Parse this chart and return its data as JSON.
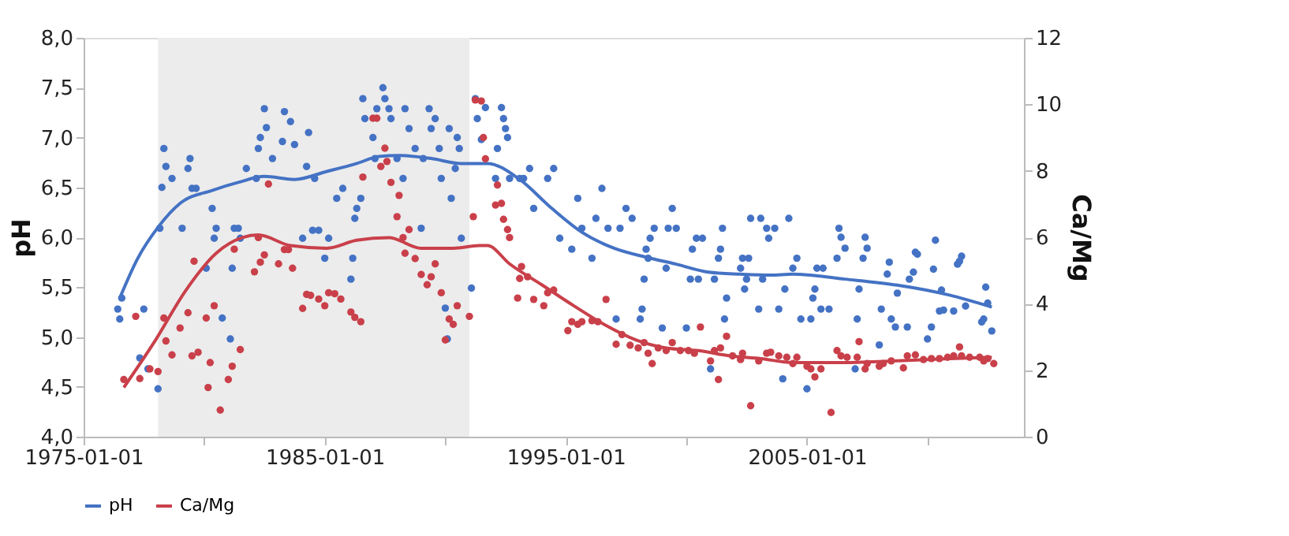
{
  "chart_data": {
    "type": "scatter",
    "ylabel": "pH",
    "y2label": "Ca/Mg",
    "legend": "bottom",
    "grid": false,
    "xlim": [
      "1975-01-01",
      "2014-01-01"
    ],
    "xticks": [
      "1975-01-01",
      {
        "value": "1980-01-01",
        "label": null
      },
      "1985-01-01",
      {
        "value": "1990-01-01",
        "label": null
      },
      "1995-01-01",
      {
        "value": "2000-01-01",
        "label": null
      },
      "2005-01-01",
      {
        "value": "2010-01-01",
        "label": null
      }
    ],
    "ylim": [
      4,
      8
    ],
    "yticks": [
      {
        "value": 4,
        "label": "4,0"
      },
      {
        "value": 4.5,
        "label": "4,5"
      },
      {
        "value": 5,
        "label": "5,0"
      },
      {
        "value": 5.5,
        "label": "5,5"
      },
      {
        "value": 6,
        "label": "6,0"
      },
      {
        "value": 6.5,
        "label": "6,5"
      },
      {
        "value": 7,
        "label": "7,0"
      },
      {
        "value": 7.5,
        "label": "7,5"
      },
      {
        "value": 8,
        "label": "8,0"
      }
    ],
    "y2lim": [
      0,
      12
    ],
    "y2ticks": [
      0,
      2,
      4,
      6,
      8,
      10,
      12
    ],
    "bands": [
      {
        "axis": "x",
        "from": "1978-02",
        "to": "1991-01",
        "color": "#ececec"
      }
    ],
    "series": [
      {
        "marker": "circle",
        "color": "#4472c4",
        "axis": "y",
        "x": [
          "1976-06",
          "1976-07",
          "1976-08",
          "1977-05",
          "1977-07",
          "1977-09",
          "1978-02",
          "1978-03",
          "1978-05",
          "1978-06",
          "1978-04",
          "1978-09",
          "1979-02",
          "1979-05",
          "1979-06",
          "1979-07",
          "1979-09",
          "1980-02",
          "1980-05",
          "1980-06",
          "1980-07",
          "1980-10",
          "1981-02",
          "1981-03",
          "1981-04",
          "1981-06",
          "1981-07",
          "1981-10",
          "1982-03",
          "1982-04",
          "1982-05",
          "1982-07",
          "1982-08",
          "1982-11",
          "1983-04",
          "1983-05",
          "1983-08",
          "1983-10",
          "1984-02",
          "1984-04",
          "1984-05",
          "1984-07",
          "1984-08",
          "1984-10",
          "1985-01",
          "1985-03",
          "1985-07",
          "1985-10",
          "1986-02",
          "1986-03",
          "1986-04",
          "1986-05",
          "1986-07",
          "1986-08",
          "1986-09",
          "1987-01",
          "1987-02",
          "1987-03",
          "1987-06",
          "1987-07",
          "1987-09",
          "1987-10",
          "1988-01",
          "1988-04",
          "1988-05",
          "1988-07",
          "1988-10",
          "1989-02",
          "1989-01",
          "1989-05",
          "1989-06",
          "1989-08",
          "1989-10",
          "1989-11",
          "1990-01",
          "1990-02",
          "1990-03",
          "1990-04",
          "1990-06",
          "1990-07",
          "1990-08",
          "1990-09",
          "1991-02",
          "1991-04",
          "1991-05",
          "1991-07",
          "1991-09",
          "1992-03",
          "1992-05",
          "1992-06",
          "1992-07",
          "1992-08",
          "1992-02",
          "1992-09",
          "1993-02",
          "1993-04",
          "1993-07",
          "1993-09",
          "1994-04",
          "1994-07",
          "1994-10",
          "1995-04",
          "1995-07",
          "1995-09",
          "1996-02",
          "1996-04",
          "1996-07",
          "1996-10",
          "1997-02",
          "1997-04",
          "1997-07",
          "1997-10",
          "1998-02",
          "1998-03",
          "1998-04",
          "1998-05",
          "1998-06",
          "1998-07",
          "1998-09",
          "1999-03",
          "1999-01",
          "1999-04",
          "1999-06",
          "1999-08",
          "2000-01",
          "2000-03",
          "2000-04",
          "2000-06",
          "2000-07",
          "2000-09",
          "2001-03",
          "2001-05",
          "2001-06",
          "2001-07",
          "2001-09",
          "2001-08",
          "2001-01",
          "2002-04",
          "2002-05",
          "2002-06",
          "2002-07",
          "2002-08",
          "2002-09",
          "2003-01",
          "2003-02",
          "2003-03",
          "2003-05",
          "2003-06",
          "2003-09",
          "2003-11",
          "2004-02",
          "2004-04",
          "2004-06",
          "2004-08",
          "2004-10",
          "2004-01",
          "2005-01",
          "2005-03",
          "2005-04",
          "2005-05",
          "2005-06",
          "2005-08",
          "2005-09",
          "2005-12",
          "2006-04",
          "2006-05",
          "2006-06",
          "2006-08",
          "2007-01",
          "2007-02",
          "2007-03",
          "2007-05",
          "2007-06",
          "2007-07",
          "2008-01",
          "2008-02",
          "2008-05",
          "2008-06",
          "2008-07",
          "2008-09",
          "2008-10",
          "2009-03",
          "2009-04",
          "2009-06",
          "2009-07",
          "2009-08",
          "2010-01",
          "2010-03",
          "2010-04",
          "2010-05",
          "2010-07",
          "2010-08",
          "2010-09",
          "2011-02",
          "2011-04",
          "2011-05",
          "2011-06",
          "2011-08",
          "2012-04",
          "2012-05",
          "2012-06",
          "2012-07",
          "2012-09"
        ],
        "values": [
          5.28,
          5.18,
          5.39,
          4.79,
          5.28,
          4.68,
          4.48,
          6.09,
          6.89,
          6.71,
          6.5,
          6.59,
          6.09,
          6.69,
          6.79,
          6.49,
          6.49,
          5.69,
          6.29,
          5.99,
          6.09,
          5.19,
          4.98,
          5.69,
          6.09,
          6.09,
          5.99,
          6.69,
          6.59,
          6.89,
          7.0,
          7.29,
          7.1,
          6.79,
          6.96,
          7.26,
          7.16,
          6.93,
          5.99,
          6.71,
          7.05,
          6.07,
          6.59,
          6.07,
          5.79,
          5.99,
          6.39,
          6.49,
          5.58,
          5.79,
          6.19,
          6.29,
          6.39,
          7.39,
          7.19,
          7.0,
          6.79,
          7.29,
          7.5,
          7.39,
          7.29,
          7.19,
          6.79,
          6.59,
          7.29,
          7.09,
          6.89,
          6.79,
          6.09,
          7.29,
          7.09,
          7.19,
          6.89,
          6.59,
          5.29,
          4.98,
          7.09,
          6.39,
          6.69,
          7.0,
          6.89,
          5.99,
          5.49,
          7.39,
          7.19,
          6.98,
          7.3,
          6.89,
          7.3,
          7.19,
          7.09,
          7.0,
          6.59,
          6.59,
          6.59,
          6.59,
          6.69,
          6.29,
          6.59,
          6.69,
          5.99,
          5.88,
          6.39,
          6.09,
          5.79,
          6.19,
          6.49,
          6.09,
          5.18,
          6.09,
          6.29,
          6.19,
          5.18,
          5.28,
          5.58,
          5.88,
          5.79,
          5.99,
          6.09,
          5.69,
          5.09,
          6.09,
          6.29,
          6.09,
          5.09,
          5.58,
          5.88,
          5.99,
          5.58,
          5.99,
          5.58,
          5.79,
          5.88,
          6.09,
          5.39,
          5.18,
          4.68,
          5.69,
          5.79,
          5.48,
          5.58,
          5.79,
          6.19,
          5.28,
          6.19,
          5.58,
          6.09,
          5.99,
          6.09,
          5.28,
          5.48,
          6.19,
          5.69,
          5.79,
          5.18,
          4.58,
          4.48,
          5.18,
          5.39,
          5.48,
          5.69,
          5.28,
          5.69,
          5.28,
          5.79,
          6.09,
          6.0,
          5.89,
          4.68,
          5.18,
          5.48,
          5.79,
          6.0,
          5.89,
          4.92,
          5.28,
          5.63,
          5.75,
          5.18,
          5.1,
          5.44,
          5.1,
          5.58,
          5.65,
          5.85,
          5.83,
          4.98,
          5.1,
          5.68,
          5.97,
          5.26,
          5.47,
          5.27,
          5.26,
          5.73,
          5.76,
          5.81,
          5.31,
          5.15,
          5.18,
          5.5,
          5.34,
          5.06
        ]
      },
      {
        "type": "line",
        "name": "pH",
        "color": "#4472c4",
        "axis": "y",
        "marker": "none",
        "line_style": "solid",
        "x": [
          "1976-07",
          "1977-04",
          "1978-02",
          "1979-01",
          "1980-05",
          "1981-06",
          "1982-07",
          "1983-10",
          "1985-02",
          "1986-05",
          "1987-04",
          "1988-02",
          "1989-06",
          "1990-09",
          "1991-10",
          "1993-02",
          "1994-06",
          "1995-09",
          "1997-01",
          "1998-05",
          "1999-08",
          "2000-12",
          "2002-04",
          "2003-07",
          "2004-06",
          "2006-08",
          "2008-10",
          "2010-12",
          "2012-09"
        ],
        "values": [
          5.39,
          5.79,
          6.1,
          6.34,
          6.47,
          6.55,
          6.61,
          6.58,
          6.66,
          6.74,
          6.81,
          6.82,
          6.79,
          6.74,
          6.74,
          6.58,
          6.29,
          6.05,
          5.89,
          5.8,
          5.73,
          5.65,
          5.63,
          5.62,
          5.63,
          5.58,
          5.52,
          5.42,
          5.3
        ]
      },
      {
        "marker": "circle",
        "color": "#c9404a",
        "axis": "y2",
        "x": [
          "1976-09",
          "1977-03",
          "1977-05",
          "1977-10",
          "1978-02",
          "1978-05",
          "1978-06",
          "1978-09",
          "1979-01",
          "1979-05",
          "1979-07",
          "1979-08",
          "1979-10",
          "1980-02",
          "1980-03",
          "1980-04",
          "1980-06",
          "1980-09",
          "1981-01",
          "1981-03",
          "1981-07",
          "1981-04",
          "1982-02",
          "1982-04",
          "1982-05",
          "1982-07",
          "1982-09",
          "1983-02",
          "1983-05",
          "1983-07",
          "1983-09",
          "1984-02",
          "1984-04",
          "1984-06",
          "1984-10",
          "1985-01",
          "1985-03",
          "1985-06",
          "1985-09",
          "1986-02",
          "1986-04",
          "1986-07",
          "1986-08",
          "1987-01",
          "1987-03",
          "1987-05",
          "1987-07",
          "1987-08",
          "1987-10",
          "1988-01",
          "1988-02",
          "1988-04",
          "1988-05",
          "1988-07",
          "1988-10",
          "1989-01",
          "1989-04",
          "1989-06",
          "1989-08",
          "1989-11",
          "1990-01",
          "1990-03",
          "1990-05",
          "1990-07",
          "1991-01",
          "1991-03",
          "1991-04",
          "1991-08",
          "1991-09",
          "1991-07",
          "1992-02",
          "1992-03",
          "1992-05",
          "1992-06",
          "1992-08",
          "1992-09",
          "1993-02",
          "1993-03",
          "1993-06",
          "1993-01",
          "1993-09",
          "1994-02",
          "1994-04",
          "1994-07",
          "1995-02",
          "1995-04",
          "1995-07",
          "1995-09",
          "1996-02",
          "1996-05",
          "1996-09",
          "1997-02",
          "1997-05",
          "1997-09",
          "1998-01",
          "1998-04",
          "1998-06",
          "1998-08",
          "1998-11",
          "1999-03",
          "1999-06",
          "1999-10",
          "2000-02",
          "2000-05",
          "2000-08",
          "2001-01",
          "2001-03",
          "2001-05",
          "2001-06",
          "2001-09",
          "2001-12",
          "2002-04",
          "2002-05",
          "2002-09",
          "2003-01",
          "2003-05",
          "2003-07",
          "2003-11",
          "2004-03",
          "2004-06",
          "2004-08",
          "2005-01",
          "2005-03",
          "2005-05",
          "2005-08",
          "2006-01",
          "2006-04",
          "2006-06",
          "2006-09",
          "2007-02",
          "2007-03",
          "2007-06",
          "2007-07",
          "2008-01",
          "2008-03",
          "2008-07",
          "2009-01",
          "2009-03",
          "2009-07",
          "2009-11",
          "2010-03",
          "2010-07",
          "2010-11",
          "2011-02",
          "2011-05",
          "2011-06",
          "2011-10",
          "2012-03",
          "2012-05",
          "2012-07",
          "2012-10"
        ],
        "values": [
          1.72,
          3.62,
          1.75,
          2.04,
          1.96,
          3.57,
          2.88,
          2.46,
          3.27,
          3.73,
          2.43,
          5.28,
          2.54,
          3.57,
          1.48,
          2.23,
          3.94,
          0.8,
          1.72,
          2.12,
          2.62,
          5.64,
          4.96,
          5.99,
          5.25,
          5.47,
          7.6,
          5.2,
          5.63,
          5.63,
          5.07,
          3.86,
          4.28,
          4.25,
          4.14,
          3.94,
          4.33,
          4.3,
          4.14,
          3.75,
          3.59,
          3.46,
          7.81,
          9.58,
          9.58,
          8.13,
          8.68,
          8.28,
          7.65,
          6.62,
          7.26,
          5.99,
          5.52,
          6.23,
          5.36,
          4.88,
          4.57,
          4.81,
          5.2,
          4.33,
          2.91,
          3.54,
          3.38,
          3.94,
          3.62,
          6.62,
          10.13,
          9.0,
          8.36,
          10.1,
          6.97,
          7.57,
          7.02,
          6.54,
          6.23,
          5.99,
          4.76,
          5.12,
          4.81,
          4.17,
          4.13,
          3.94,
          4.33,
          4.41,
          3.19,
          3.46,
          3.38,
          3.46,
          3.49,
          3.46,
          4.13,
          2.78,
          3.07,
          2.75,
          2.67,
          2.83,
          2.51,
          2.2,
          2.67,
          2.59,
          2.83,
          2.59,
          2.59,
          2.51,
          3.3,
          2.28,
          2.59,
          1.72,
          2.67,
          3.02,
          2.43,
          2.32,
          2.51,
          0.93,
          2.28,
          2.51,
          2.54,
          2.43,
          2.39,
          2.2,
          2.39,
          2.12,
          2.04,
          1.8,
          2.04,
          0.73,
          2.59,
          2.43,
          2.39,
          2.39,
          2.86,
          2.04,
          2.2,
          2.12,
          2.2,
          2.28,
          2.07,
          2.43,
          2.46,
          2.32,
          2.35,
          2.35,
          2.39,
          2.43,
          2.7,
          2.43,
          2.39,
          2.39,
          2.28,
          2.35,
          2.2
        ]
      },
      {
        "type": "line",
        "name": "Ca/Mg",
        "color": "#c9404a",
        "axis": "y2",
        "marker": "none",
        "line_style": "solid",
        "x": [
          "1976-09",
          "1977-12",
          "1979-04",
          "1980-07",
          "1981-08",
          "1982-04",
          "1983-08",
          "1985-02",
          "1986-05",
          "1987-09",
          "1989-01",
          "1990-05",
          "1991-06",
          "1991-10",
          "1992-09",
          "1994-01",
          "1995-05",
          "1996-08",
          "1997-12",
          "1999-03",
          "2000-07",
          "2001-11",
          "2003-02",
          "2004-06",
          "2006-08",
          "2008-10",
          "2010-12",
          "2012-09"
        ],
        "values": [
          1.48,
          2.83,
          4.41,
          5.52,
          5.99,
          6.07,
          5.75,
          5.67,
          5.91,
          5.99,
          5.67,
          5.67,
          5.75,
          5.75,
          5.2,
          4.57,
          3.94,
          3.38,
          2.91,
          2.67,
          2.59,
          2.43,
          2.35,
          2.23,
          2.23,
          2.28,
          2.35,
          2.39
        ]
      }
    ]
  }
}
